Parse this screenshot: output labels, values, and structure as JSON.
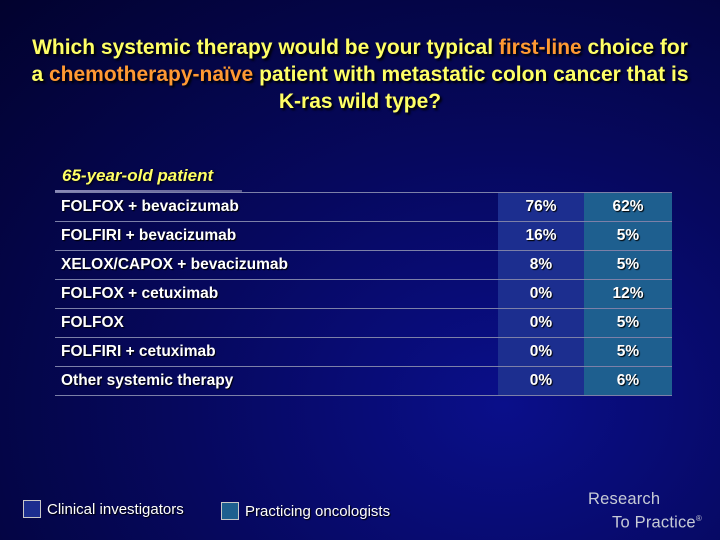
{
  "title": {
    "part1": "Which systemic therapy would be your typical ",
    "hl1": "first-line",
    "part2": " choice for a ",
    "hl2": "chemotherapy-naïve",
    "part3": " patient with metastatic colon cancer that is K-ras wild type?"
  },
  "subtitle": "65-year-old patient",
  "rows": [
    {
      "label": "FOLFOX + bevacizumab",
      "investigators": "76%",
      "oncologists": "62%"
    },
    {
      "label": "FOLFIRI + bevacizumab",
      "investigators": "16%",
      "oncologists": "5%"
    },
    {
      "label": "XELOX/CAPOX + bevacizumab",
      "investigators": "8%",
      "oncologists": "5%"
    },
    {
      "label": "FOLFOX + cetuximab",
      "investigators": "0%",
      "oncologists": "12%"
    },
    {
      "label": "FOLFOX",
      "investigators": "0%",
      "oncologists": "5%"
    },
    {
      "label": "FOLFIRI + cetuximab",
      "investigators": "0%",
      "oncologists": "5%"
    },
    {
      "label": "Other systemic therapy",
      "investigators": "0%",
      "oncologists": "6%"
    }
  ],
  "legend": [
    {
      "label": "Clinical investigators",
      "color": "#1c2e8f"
    },
    {
      "label": "Practicing oncologists",
      "color": "#1e5f8f"
    }
  ],
  "logo": {
    "line1": "Research",
    "line2": "To Practice",
    "mark": "®"
  },
  "colors": {
    "title": "#ffff66",
    "highlight": "#ff9933",
    "col1": "#1c2e8f",
    "col2": "#1e5f8f"
  }
}
